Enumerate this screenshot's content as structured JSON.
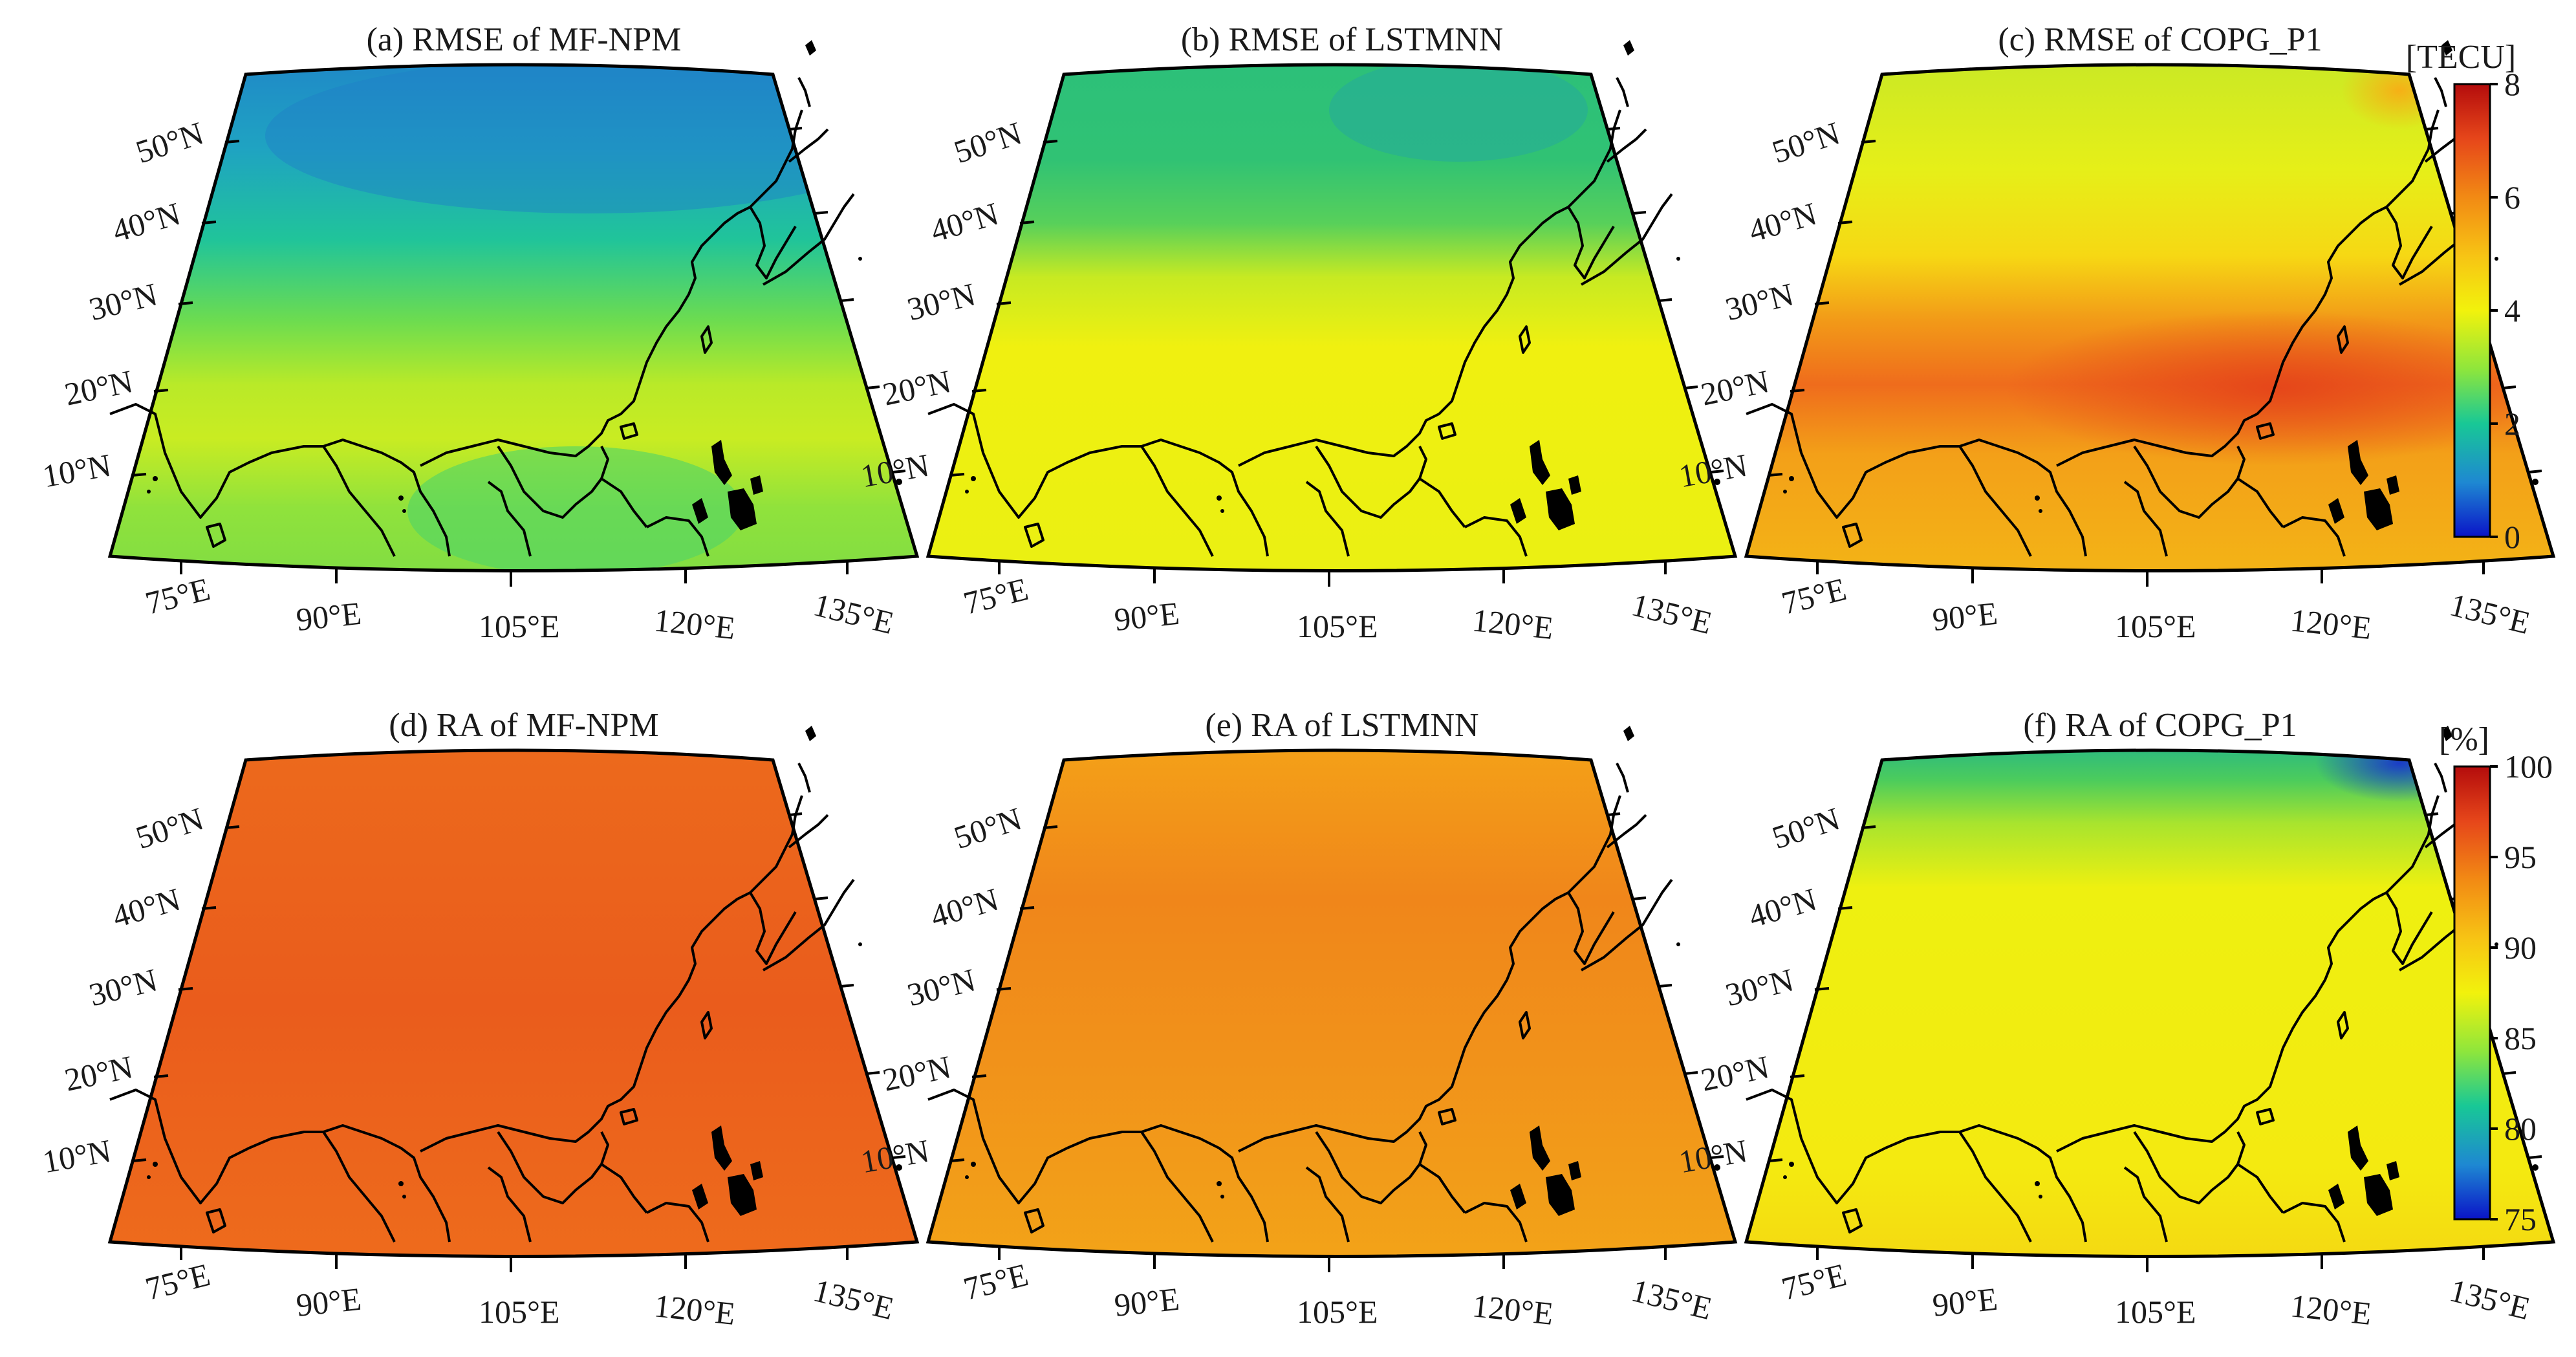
{
  "figure": {
    "panels": [
      {
        "id": "a",
        "title": "(a) RMSE of MF-NPM",
        "scheme": "rmse_mfnpm"
      },
      {
        "id": "b",
        "title": "(b) RMSE of LSTMNN",
        "scheme": "rmse_lstmnn"
      },
      {
        "id": "c",
        "title": "(c) RMSE of COPG_P1",
        "scheme": "rmse_copg"
      },
      {
        "id": "d",
        "title": "(d) RA of MF-NPM",
        "scheme": "ra_mfnpm"
      },
      {
        "id": "e",
        "title": "(e) RA of LSTMNN",
        "scheme": "ra_lstmnn"
      },
      {
        "id": "f",
        "title": "(f) RA of COPG_P1",
        "scheme": "ra_copg"
      }
    ],
    "lat_labels": [
      "50°N",
      "40°N",
      "30°N",
      "20°N",
      "10°N"
    ],
    "lon_labels": [
      "75°E",
      "90°E",
      "105°E",
      "120°E",
      "135°E"
    ],
    "colorbars": [
      {
        "id": "rmse",
        "unit": "[TECU]",
        "ticks": [
          "8",
          "6",
          "4",
          "2",
          "0"
        ],
        "range": [
          0,
          8
        ]
      },
      {
        "id": "ra",
        "unit": "[%]",
        "ticks": [
          "100",
          "95",
          "90",
          "85",
          "80",
          "75"
        ],
        "range": [
          75,
          100
        ]
      }
    ],
    "colormap": [
      "#0a14c8",
      "#1e88d2",
      "#18c896",
      "#8ee63c",
      "#f2f20c",
      "#f7c414",
      "#f28a14",
      "#e6461a",
      "#b40c0c"
    ]
  }
}
